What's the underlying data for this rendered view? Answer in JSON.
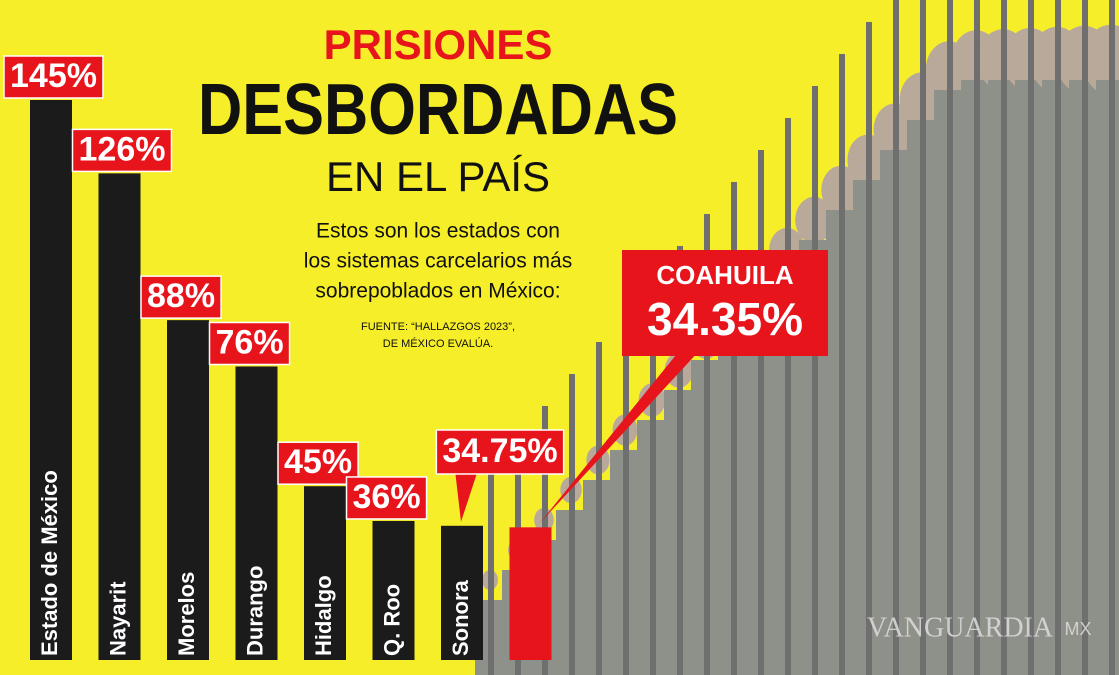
{
  "chart_data": {
    "type": "bar",
    "title": "PRISIONES",
    "title_main": "DESBORDADAS",
    "title_sub": "EN EL PAÍS",
    "subtitle": [
      "Estos son los estados con",
      "los sistemas carcelarios más",
      "sobrepoblados en México:"
    ],
    "source": [
      "FUENTE: “HALLAZGOS 2023”,",
      "DE MÉXICO EVALÚA."
    ],
    "categories": [
      "Estado de México",
      "Nayarit",
      "Morelos",
      "Durango",
      "Hidalgo",
      "Q. Roo",
      "Sonora",
      "COAHUILA"
    ],
    "values": [
      145,
      126,
      88,
      76,
      45,
      36,
      34.75,
      34.35
    ],
    "value_labels": [
      "145%",
      "126%",
      "88%",
      "76%",
      "45%",
      "36%",
      "34.75%",
      "34.35%"
    ],
    "colors": [
      "#1b1b1b",
      "#1b1b1b",
      "#1b1b1b",
      "#1b1b1b",
      "#1b1b1b",
      "#1b1b1b",
      "#1b1b1b",
      "#e8141c"
    ],
    "watermark": "VANGUARDIA",
    "watermark_suffix": "MX"
  }
}
